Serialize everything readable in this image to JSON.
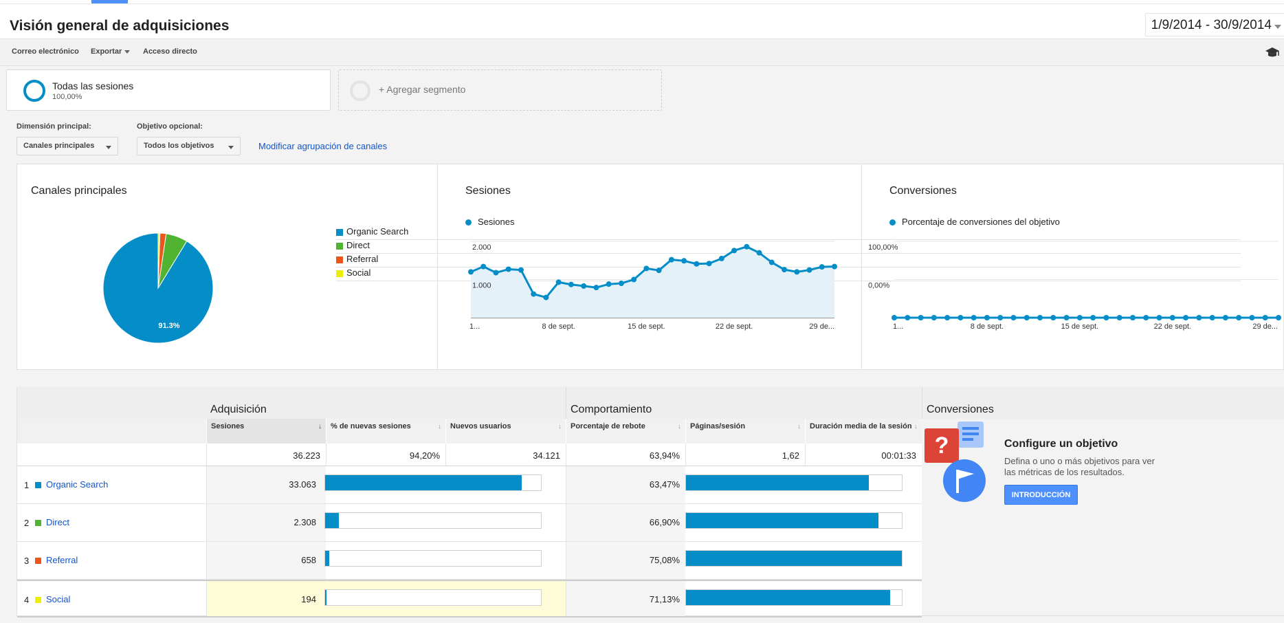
{
  "header": {
    "title": "Visión general de adquisiciones",
    "date_range": "1/9/2014 - 30/9/2014"
  },
  "toolbar": {
    "email": "Correo electrónico",
    "export": "Exportar",
    "shortcut": "Acceso directo"
  },
  "segments": {
    "all_sessions": {
      "title": "Todas las sesiones",
      "percent": "100,00%"
    },
    "add_segment": "+ Agregar segmento"
  },
  "filters": {
    "primary_dimension_label": "Dimensión principal:",
    "primary_dimension_value": "Canales principales",
    "optional_goal_label": "Objetivo opcional:",
    "optional_goal_value": "Todos los objetivos",
    "modify_grouping_link": "Modificar agrupación de canales"
  },
  "chart_data": [
    {
      "type": "pie",
      "title": "Canales principales",
      "categories": [
        "Organic Search",
        "Direct",
        "Referral",
        "Social"
      ],
      "values": [
        33063,
        2308,
        658,
        194
      ],
      "colors": [
        "#058dc7",
        "#50b432",
        "#ed561b",
        "#edef00"
      ],
      "slice_label": "91.3%",
      "legend_placement": "right"
    },
    {
      "type": "area",
      "title": "Sesiones",
      "series": [
        {
          "name": "Sesiones",
          "values": [
            1200,
            1340,
            1180,
            1270,
            1250,
            620,
            530,
            930,
            870,
            830,
            790,
            880,
            900,
            1000,
            1290,
            1240,
            1520,
            1490,
            1410,
            1420,
            1550,
            1760,
            1860,
            1700,
            1450,
            1260,
            1200,
            1250,
            1330,
            1340
          ]
        }
      ],
      "x_tick_labels": [
        "1...",
        "8 de sept.",
        "15 de sept.",
        "22 de sept.",
        "29 de..."
      ],
      "y_tick_labels": [
        "2.000",
        "1.000"
      ],
      "ylim": [
        0,
        2000
      ],
      "grid": true,
      "color": "#058dc7"
    },
    {
      "type": "line",
      "title": "Conversiones",
      "series": [
        {
          "name": "Porcentaje de conversiones del objetivo",
          "values": [
            0,
            0,
            0,
            0,
            0,
            0,
            0,
            0,
            0,
            0,
            0,
            0,
            0,
            0,
            0,
            0,
            0,
            0,
            0,
            0,
            0,
            0,
            0,
            0,
            0,
            0,
            0,
            0,
            0,
            0
          ]
        }
      ],
      "x_tick_labels": [
        "1...",
        "8 de sept.",
        "15 de sept.",
        "22 de sept.",
        "29 de..."
      ],
      "y_tick_labels": [
        "100,00%",
        "0,00%"
      ],
      "ylim": [
        0,
        100
      ],
      "grid": true,
      "color": "#058dc7"
    }
  ],
  "table": {
    "groups": {
      "acquisition": "Adquisición",
      "behavior": "Comportamiento",
      "conversions": "Conversiones"
    },
    "columns": {
      "sessions": "Sesiones",
      "new_sessions_pct": "% de nuevas sesiones",
      "new_users": "Nuevos usuarios",
      "bounce_rate": "Porcentaje de rebote",
      "pages_per_session": "Páginas/sesión",
      "avg_duration": "Duración media de la sesión"
    },
    "totals": {
      "sessions": "36.223",
      "new_sessions_pct": "94,20%",
      "new_users": "34.121",
      "bounce_rate": "63,94%",
      "pages_per_session": "1,62",
      "avg_duration": "00:01:33"
    },
    "rows": [
      {
        "rank": "1",
        "channel": "Organic Search",
        "sessions": "33.063",
        "new_sessions_share": 0.91,
        "bounce_rate": "63,47%",
        "bounce_share": 0.846,
        "color": "#058dc7"
      },
      {
        "rank": "2",
        "channel": "Direct",
        "sessions": "2.308",
        "new_sessions_share": 0.064,
        "bounce_rate": "66,90%",
        "bounce_share": 0.892,
        "color": "#50b432"
      },
      {
        "rank": "3",
        "channel": "Referral",
        "sessions": "658",
        "new_sessions_share": 0.018,
        "bounce_rate": "75,08%",
        "bounce_share": 1.0,
        "color": "#ed561b"
      },
      {
        "rank": "4",
        "channel": "Social",
        "sessions": "194",
        "new_sessions_share": 0.005,
        "bounce_rate": "71,13%",
        "bounce_share": 0.947,
        "color": "#edef00"
      }
    ]
  },
  "conversions_promo": {
    "title": "Configure un objetivo",
    "text": "Defina o uno o más objetivos para ver las métricas de los resultados.",
    "button": "INTRODUCCIÓN"
  }
}
